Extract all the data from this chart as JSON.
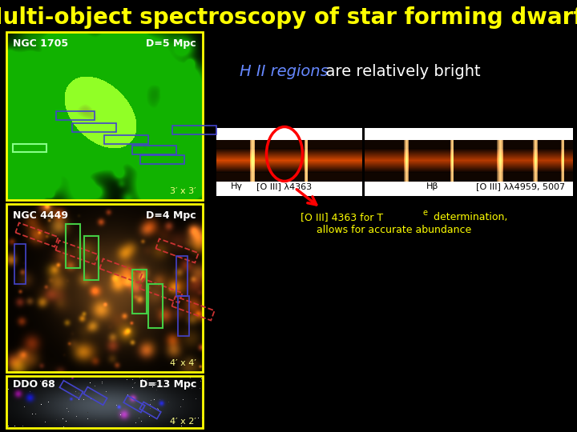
{
  "title": "Multi-object spectroscopy of star forming dwarfs",
  "title_color": "#ffff00",
  "title_fontsize": 20,
  "bg_color": "#000000",
  "hii_text": "H II regions",
  "hii_color": "#6688ff",
  "bright_text": "  are relatively bright",
  "bright_color": "#ffffff",
  "hii_fontsize": 14,
  "ngc1705_label": "NGC 1705",
  "ngc1705_dist": "D=5 Mpc",
  "ngc1705_size": "3′ x 3′",
  "ngc4449_label": "NGC 4449",
  "ngc4449_dist": "D=4 Mpc",
  "ngc4449_size": "4′ x 4′",
  "ddo68_label": "DDO 68",
  "ddo68_dist": "D=13 Mpc",
  "ddo68_size": "4′ x 2′",
  "label_color": "#ffffff",
  "box_color": "#ffff00",
  "spec_label1a": "Hγ",
  "spec_label1b": "[O III] λ4363",
  "spec_label2": "Hβ",
  "spec_label3": "[O III] λλ4959, 5007",
  "oiii_note1": "[O III] 4363 for T",
  "oiii_sub": "e",
  "oiii_note2": " determination,",
  "oiii_note3": "allows for accurate abundance",
  "oiii_color": "#ffff00",
  "oiii_fontsize": 9,
  "size_color": "#ffff88"
}
